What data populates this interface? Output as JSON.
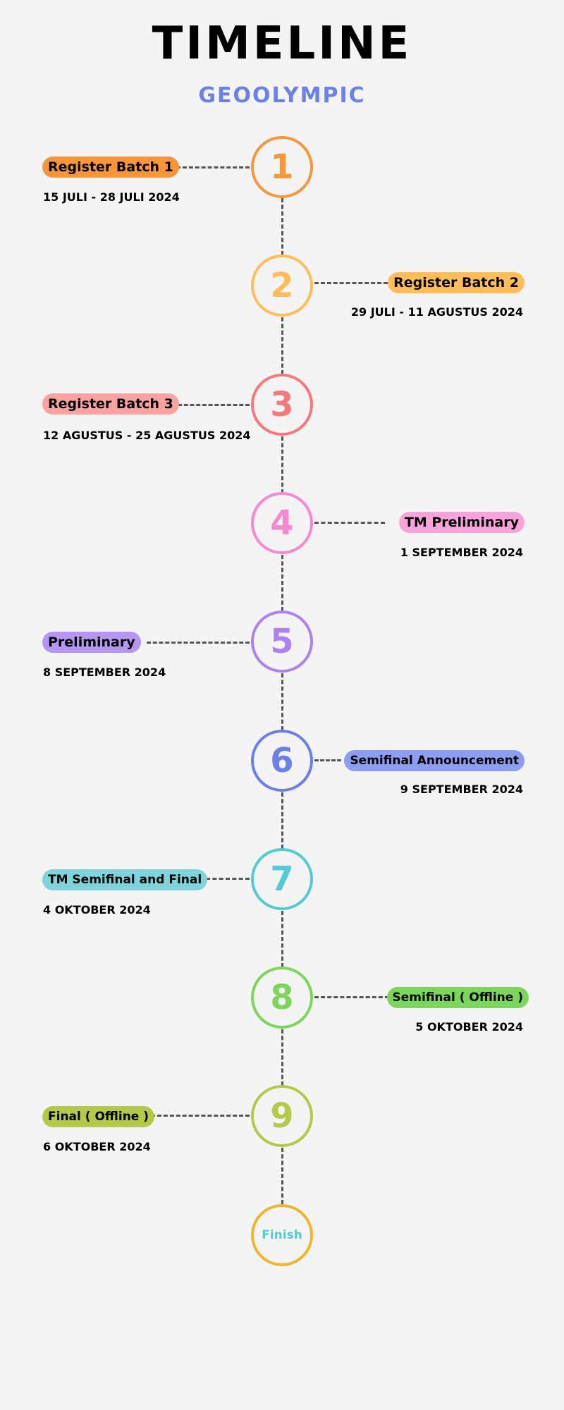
{
  "header": {
    "title": "TIMELINE",
    "subtitle": "GEOOLYMPIC"
  },
  "steps": [
    {
      "number": "1",
      "label": "Register Batch 1",
      "date": "15 JULI - 28 JULI 2024",
      "color": "#f7963b",
      "pill_color": "#f7963b"
    },
    {
      "number": "2",
      "label": "Register Batch 2",
      "date": "29 JULI - 11 AGUSTUS 2024",
      "color": "#fcbd5a",
      "pill_color": "#fcbd5a"
    },
    {
      "number": "3",
      "label": "Register Batch 3",
      "date": "12 AGUSTUS - 25 AGUSTUS 2024",
      "color": "#f4797c",
      "pill_color": "#f9a2a2"
    },
    {
      "number": "4",
      "label": "TM Preliminary",
      "date": "1 SEPTEMBER 2024",
      "color": "#f887d2",
      "pill_color": "#f9a3dc"
    },
    {
      "number": "5",
      "label": "Preliminary",
      "date": "8 SEPTEMBER 2024",
      "color": "#ac81f1",
      "pill_color": "#b696f3"
    },
    {
      "number": "6",
      "label": "Semifinal Announcement",
      "date": "9 SEPTEMBER 2024",
      "color": "#6b7fe8",
      "pill_color": "#8d9df0"
    },
    {
      "number": "7",
      "label": "TM Semifinal and Final",
      "date": "4 OKTOBER 2024",
      "color": "#55cad3",
      "pill_color": "#7fd4db"
    },
    {
      "number": "8",
      "label": "Semifinal ( Offline )",
      "date": "5 OKTOBER 2024",
      "color": "#7cd65c",
      "pill_color": "#7cd65c"
    },
    {
      "number": "9",
      "label": "Final ( Offline )",
      "date": "6 OKTOBER 2024",
      "color": "#b5c84a",
      "pill_color": "#b5c84a"
    }
  ],
  "finish": {
    "label": "Finish",
    "border_color": "#f0b52a",
    "text_color": "#55cad3"
  }
}
